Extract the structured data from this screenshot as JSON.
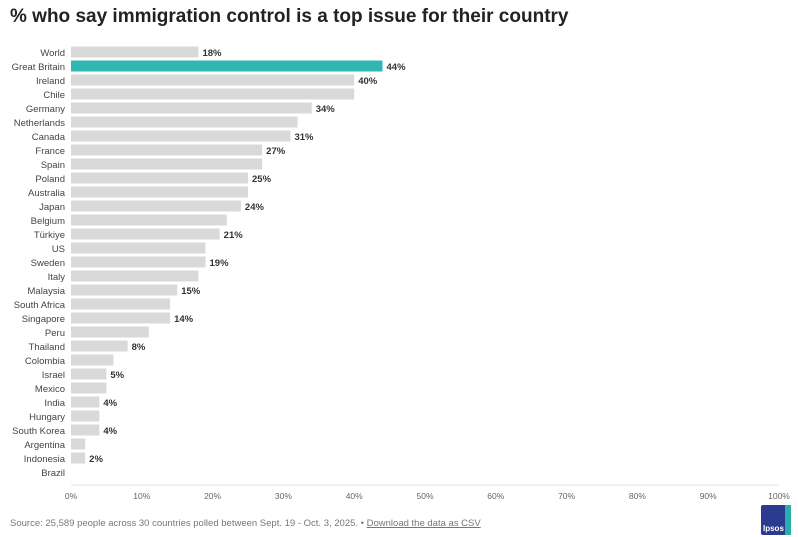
{
  "chart_data": {
    "type": "bar",
    "orientation": "horizontal",
    "title": "% who say immigration control is a top issue for their country",
    "categories": [
      "World",
      "Great Britain",
      "Ireland",
      "Chile",
      "Germany",
      "Netherlands",
      "Canada",
      "France",
      "Spain",
      "Poland",
      "Australia",
      "Japan",
      "Belgium",
      "Türkiye",
      "US",
      "Sweden",
      "Italy",
      "Malaysia",
      "South Africa",
      "Singapore",
      "Peru",
      "Thailand",
      "Colombia",
      "Israel",
      "Mexico",
      "India",
      "Hungary",
      "South Korea",
      "Argentina",
      "Indonesia",
      "Brazil"
    ],
    "values": [
      18,
      44,
      40,
      40,
      34,
      32,
      31,
      27,
      27,
      25,
      25,
      24,
      22,
      21,
      19,
      19,
      18,
      15,
      14,
      14,
      11,
      8,
      6,
      5,
      5,
      4,
      4,
      4,
      2,
      2,
      0
    ],
    "data_labels": [
      "18%",
      "44%",
      "40%",
      "",
      "34%",
      "",
      "31%",
      "27%",
      "",
      "25%",
      "",
      "24%",
      "",
      "21%",
      "",
      "19%",
      "",
      "15%",
      "",
      "14%",
      "",
      "8%",
      "",
      "5%",
      "",
      "4%",
      "",
      "4%",
      "",
      "2%",
      ""
    ],
    "highlight": "Great Britain",
    "colors": {
      "default": "#d9d9d9",
      "highlight": "#31b7b1"
    },
    "xlim": [
      0,
      100
    ],
    "xticks": [
      "0%",
      "10%",
      "20%",
      "30%",
      "40%",
      "50%",
      "60%",
      "70%",
      "80%",
      "90%",
      "100%"
    ],
    "xlabel": "",
    "ylabel": ""
  },
  "footer": {
    "source": "Source: 25,589 people across 30 countries polled between Sept. 19 - Oct. 3, 2025. •",
    "download_link": "Download the data as CSV",
    "logo": "Ipsos"
  }
}
